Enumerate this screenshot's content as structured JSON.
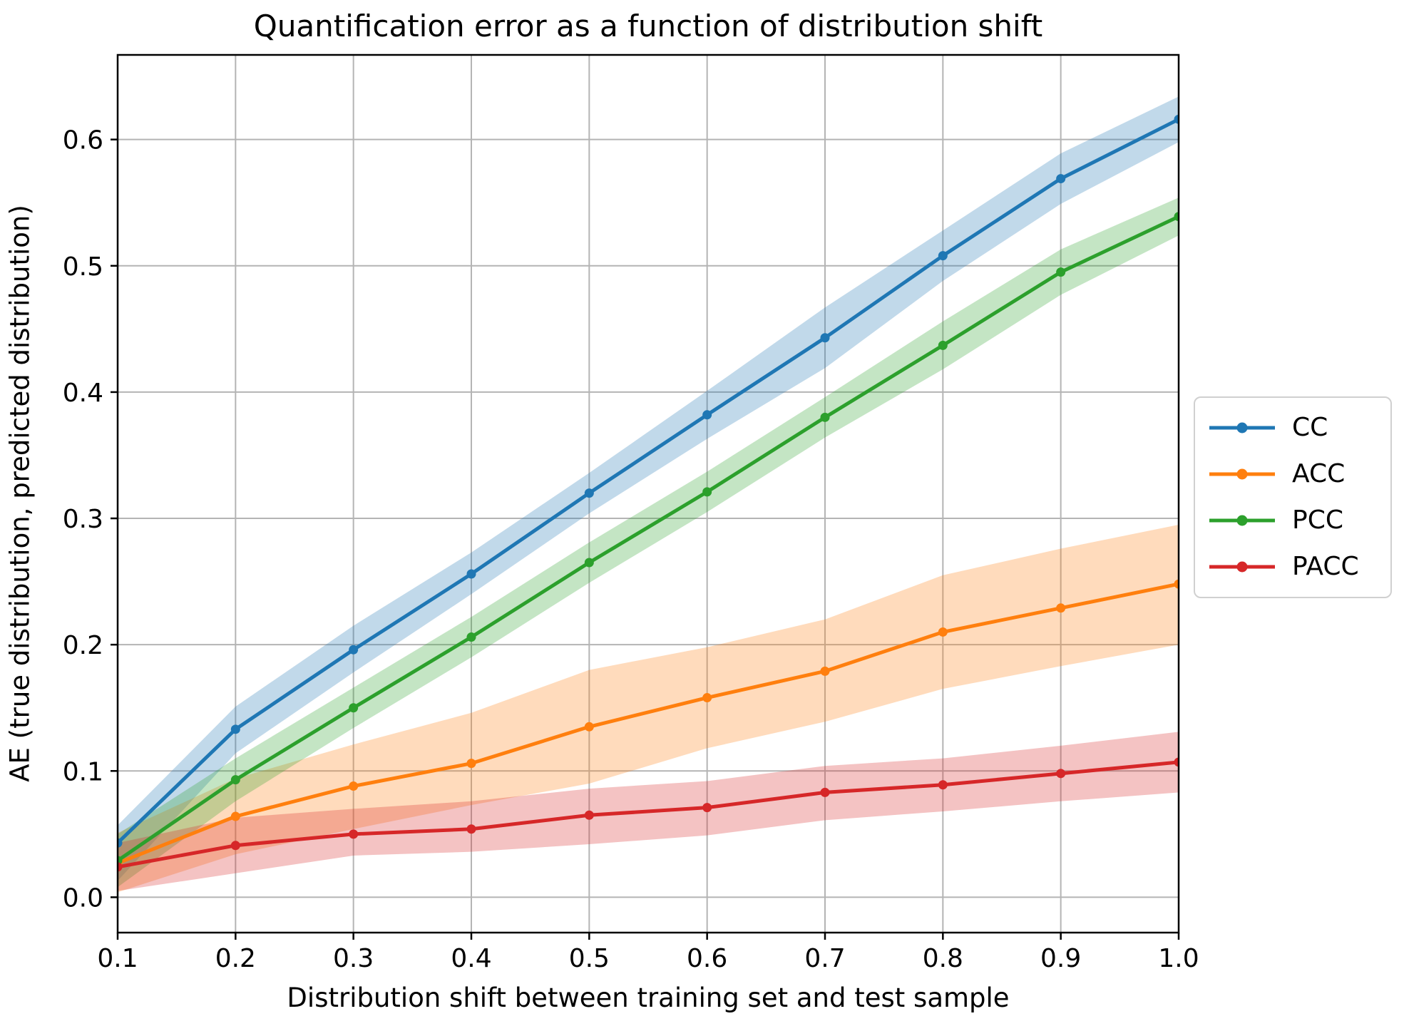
{
  "chart_data": {
    "type": "line",
    "title": "Quantification error as a function of distribution shift",
    "xlabel": "Distribution shift between training set and test sample",
    "ylabel": "AE (true distribution, predicted distribution)",
    "x": [
      0.1,
      0.2,
      0.3,
      0.4,
      0.5,
      0.6,
      0.7,
      0.8,
      0.9,
      1.0
    ],
    "x_tick_labels": [
      "0.1",
      "0.2",
      "0.3",
      "0.4",
      "0.5",
      "0.6",
      "0.7",
      "0.8",
      "0.9",
      "1.0"
    ],
    "y_ticks": [
      0.0,
      0.1,
      0.2,
      0.3,
      0.4,
      0.5,
      0.6
    ],
    "y_tick_labels": [
      "0.0",
      "0.1",
      "0.2",
      "0.3",
      "0.4",
      "0.5",
      "0.6"
    ],
    "xlim": [
      0.1,
      1.0
    ],
    "ylim": [
      -0.028,
      0.667
    ],
    "grid": true,
    "grid_color": "#b4b4b4",
    "band_alpha": 0.28,
    "legend_position": "right-outside",
    "series": [
      {
        "name": "CC",
        "color": "#1f77b4",
        "values": [
          0.043,
          0.133,
          0.196,
          0.256,
          0.32,
          0.382,
          0.443,
          0.508,
          0.569,
          0.616
        ],
        "upper": [
          0.057,
          0.151,
          0.215,
          0.273,
          0.336,
          0.401,
          0.467,
          0.528,
          0.589,
          0.634
        ],
        "lower": [
          0.013,
          0.114,
          0.178,
          0.24,
          0.304,
          0.363,
          0.419,
          0.488,
          0.549,
          0.598
        ]
      },
      {
        "name": "ACC",
        "color": "#ff7f0e",
        "values": [
          0.027,
          0.064,
          0.088,
          0.106,
          0.135,
          0.158,
          0.179,
          0.21,
          0.229,
          0.248
        ],
        "upper": [
          0.051,
          0.094,
          0.121,
          0.146,
          0.18,
          0.198,
          0.22,
          0.255,
          0.276,
          0.295
        ],
        "lower": [
          0.004,
          0.034,
          0.054,
          0.073,
          0.09,
          0.118,
          0.139,
          0.165,
          0.183,
          0.2
        ]
      },
      {
        "name": "PCC",
        "color": "#2ca02c",
        "values": [
          0.029,
          0.093,
          0.15,
          0.206,
          0.265,
          0.321,
          0.38,
          0.437,
          0.495,
          0.539
        ],
        "upper": [
          0.05,
          0.11,
          0.166,
          0.222,
          0.281,
          0.337,
          0.396,
          0.456,
          0.513,
          0.554
        ],
        "lower": [
          0.008,
          0.076,
          0.134,
          0.19,
          0.249,
          0.305,
          0.364,
          0.418,
          0.477,
          0.524
        ]
      },
      {
        "name": "PACC",
        "color": "#d62728",
        "values": [
          0.024,
          0.041,
          0.05,
          0.054,
          0.065,
          0.071,
          0.083,
          0.089,
          0.098,
          0.107
        ],
        "upper": [
          0.043,
          0.063,
          0.07,
          0.076,
          0.086,
          0.092,
          0.104,
          0.11,
          0.12,
          0.131
        ],
        "lower": [
          0.005,
          0.019,
          0.033,
          0.036,
          0.042,
          0.049,
          0.061,
          0.068,
          0.076,
          0.083
        ]
      }
    ]
  }
}
